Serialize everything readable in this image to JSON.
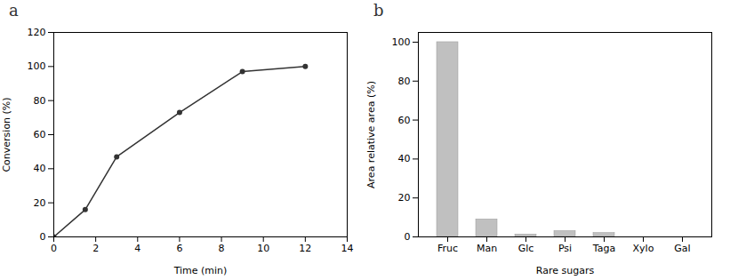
{
  "chart_data": [
    {
      "type": "line",
      "title": "a",
      "x": [
        0,
        1.5,
        3,
        6,
        9,
        12
      ],
      "values": [
        0,
        16,
        47,
        73,
        97,
        100
      ],
      "color": "#333333",
      "marker": "circle",
      "xlabel": "Time (min)",
      "ylabel": "Conversion (%)",
      "xlim": [
        0,
        14
      ],
      "ylim": [
        0,
        120
      ],
      "xticks": [
        0,
        2,
        4,
        6,
        8,
        10,
        12,
        14
      ],
      "yticks": [
        0,
        20,
        40,
        60,
        80,
        100,
        120
      ]
    },
    {
      "type": "bar",
      "title": "b",
      "categories": [
        "Fruc",
        "Man",
        "Glc",
        "Psi",
        "Taga",
        "Xylo",
        "Gal"
      ],
      "values": [
        100,
        9,
        1.2,
        3,
        2,
        0,
        0
      ],
      "color": "#c0c0c0",
      "xlabel": "Rare sugars",
      "ylabel": "Area relative area (%)",
      "ylim": [
        0,
        105
      ],
      "yticks": [
        0,
        20,
        40,
        60,
        80,
        100
      ]
    }
  ]
}
